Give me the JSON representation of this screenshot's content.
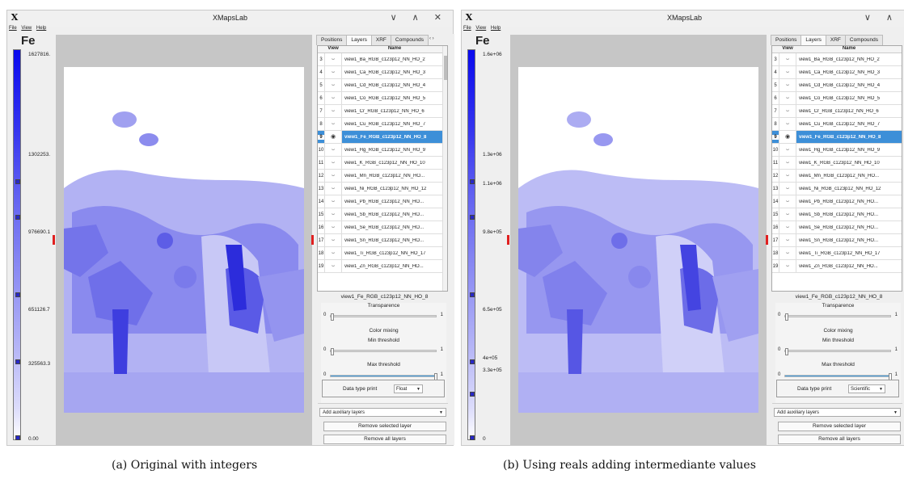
{
  "window": {
    "title": "XMapsLab",
    "app_icon_glyph": "X",
    "controls": "∨ ∧ ✕",
    "controls_b": "∨ ∧"
  },
  "menubar": [
    "File",
    "View",
    "Help"
  ],
  "colorbar": {
    "title": "Fe",
    "gradient_top_color": "#0a0aee",
    "gradient_bottom_color": "#ffffff",
    "marker_color": "#e02020"
  },
  "figure_a": {
    "tick_labels": [
      "1627816.",
      "1302253.",
      "976690.1",
      "651126.7",
      "325563.3",
      "0.00"
    ],
    "data_type_value": "Float",
    "caption": "(a) Original with integers"
  },
  "figure_b": {
    "tick_labels": [
      "1.6e+06",
      "1.3e+06",
      "1.1e+06",
      "9.8e+05",
      "6.5e+05",
      "4e+05",
      "3.3e+05",
      "0"
    ],
    "data_type_value": "Scientific",
    "caption": "(b) Using reals adding intermediante values"
  },
  "tabs": {
    "a": [
      "Positions",
      "Layers",
      "XRF",
      "Compounds"
    ],
    "b": [
      "Positions",
      "Layers",
      "XRF",
      "Compounds"
    ],
    "active": "Layers",
    "arrows_label": "‹ ›"
  },
  "table": {
    "headers": [
      "View",
      "Name"
    ],
    "rows": [
      {
        "num": "3",
        "view": "⌣",
        "name": "view1_Ba_RGB_c123p12_NN_HO_2"
      },
      {
        "num": "4",
        "view": "⌣",
        "name": "view1_Ca_RGB_c123p12_NN_HO_3"
      },
      {
        "num": "5",
        "view": "⌣",
        "name": "view1_Cd_RGB_c123p12_NN_HO_4"
      },
      {
        "num": "6",
        "view": "⌣",
        "name": "view1_Co_RGB_c123p12_NN_HO_5"
      },
      {
        "num": "7",
        "view": "⌣",
        "name": "view1_Cr_RGB_c123p12_NN_HO_6"
      },
      {
        "num": "8",
        "view": "⌣",
        "name": "view1_Cu_RGB_c123p12_NN_HO_7"
      },
      {
        "num": "9",
        "view": "◉",
        "name": "view1_Fe_RGB_c123p12_NN_HO_8",
        "selected": true
      },
      {
        "num": "10",
        "view": "⌣",
        "name": "view1_Hg_RGB_c123p12_NN_HO_9"
      },
      {
        "num": "11",
        "view": "⌣",
        "name": "view1_K_RGB_c123p12_NN_HO_10"
      },
      {
        "num": "12",
        "view": "⌣",
        "name": "view1_Mn_RGB_c123p12_NN_HO..."
      },
      {
        "num": "13",
        "view": "⌣",
        "name": "view1_Ni_RGB_c123p12_NN_HO_12"
      },
      {
        "num": "14",
        "view": "⌣",
        "name": "view1_Pb_RGB_c123p12_NN_HO..."
      },
      {
        "num": "15",
        "view": "⌣",
        "name": "view1_Sb_RGB_c123p12_NN_HO..."
      },
      {
        "num": "16",
        "view": "⌣",
        "name": "view1_Se_RGB_c123p12_NN_HO..."
      },
      {
        "num": "17",
        "view": "⌣",
        "name": "view1_Sn_RGB_c123p12_NN_HO..."
      },
      {
        "num": "18",
        "view": "⌣",
        "name": "view1_Ti_RGB_c123p12_NN_HO_17"
      },
      {
        "num": "19",
        "view": "⌣",
        "name": "view1_Zn_RGB_c123p12_NN_HO..."
      }
    ]
  },
  "settings": {
    "selected_layer": "view1_Fe_RGB_c123p12_NN_HO_8",
    "transparence_label": "Transparence",
    "color_mixing_label": "Color mixing",
    "min_threshold_label": "Min threshold",
    "max_threshold_label": "Max threshold",
    "slider_min": "0",
    "slider_max": "1",
    "transparence_value": 0.0,
    "min_threshold_value": 0.0,
    "max_threshold_value": 1.0,
    "data_type_label": "Data type print",
    "slider_fill_color": "#3d9be0"
  },
  "actions": {
    "aux_layers": "Add auxiliary layers",
    "remove_selected": "Remove selected layer",
    "remove_all": "Remove all layers"
  },
  "selection_color": "#3d8fd8"
}
